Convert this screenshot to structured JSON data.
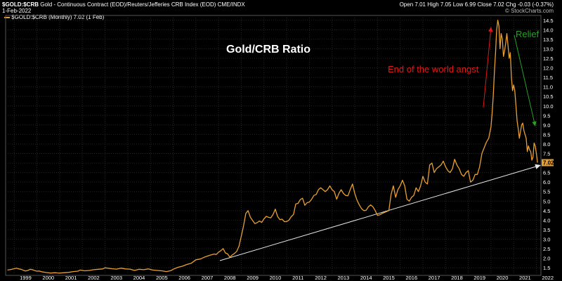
{
  "header": {
    "symbol": "$GOLD:$CRB",
    "description": "Gold - Continuous Contract (EOD)/Reuters/Jefferies CRB Index (EOD)",
    "exchange": "CME/INDX",
    "date": "1-Feb-2022",
    "quote": {
      "open_label": "Open",
      "open": "7.01",
      "high_label": "High",
      "high": "7.05",
      "low_label": "Low",
      "low": "6.99",
      "close_label": "Close",
      "close": "7.02",
      "chg_label": "Chg",
      "chg": "-0.03 (-0.37%)"
    },
    "credit": "© StockCharts.com",
    "legend": "$GOLD:$CRB (Monthly) 7.02 (1 Feb)"
  },
  "colors": {
    "background": "#000000",
    "line": "#e8a033",
    "grid": "#262626",
    "title": "#ffffff",
    "red_note": "#e01818",
    "green_note": "#27a127",
    "trendline": "#e6e6e6"
  },
  "chart_data": {
    "type": "line",
    "title": "Gold/CRB Ratio",
    "xlabel": "",
    "ylabel": "",
    "x_ticks": [
      "1999",
      "2000",
      "2001",
      "2002",
      "2003",
      "2004",
      "2005",
      "2006",
      "2007",
      "2008",
      "2009",
      "2010",
      "2011",
      "2012",
      "2013",
      "2014",
      "2015",
      "2016",
      "2017",
      "2018",
      "2019",
      "2020",
      "2021",
      "2022"
    ],
    "y_ticks": [
      "1.5",
      "2.0",
      "2.5",
      "3.0",
      "3.5",
      "4.0",
      "4.5",
      "5.0",
      "5.5",
      "6.0",
      "6.5",
      "7.0",
      "7.5",
      "8.0",
      "8.5",
      "9.0",
      "9.5",
      "10.0",
      "10.5",
      "11.0",
      "11.5",
      "12.0",
      "12.5",
      "13.0",
      "13.5",
      "14.0",
      "14.5"
    ],
    "ylim": [
      1.1,
      14.75
    ],
    "xlim": [
      1998.62,
      2022.2
    ],
    "grid": true,
    "last_value_label": "7.02",
    "series": [
      {
        "values": [
          [
            1998.7,
            1.38
          ],
          [
            1998.8,
            1.4
          ],
          [
            1998.9,
            1.42
          ],
          [
            1999.0,
            1.45
          ],
          [
            1999.1,
            1.48
          ],
          [
            1999.2,
            1.44
          ],
          [
            1999.3,
            1.42
          ],
          [
            1999.4,
            1.37
          ],
          [
            1999.5,
            1.33
          ],
          [
            1999.6,
            1.36
          ],
          [
            1999.7,
            1.42
          ],
          [
            1999.8,
            1.4
          ],
          [
            1999.9,
            1.35
          ],
          [
            2000.0,
            1.32
          ],
          [
            2000.1,
            1.33
          ],
          [
            2000.2,
            1.29
          ],
          [
            2000.4,
            1.25
          ],
          [
            2000.6,
            1.22
          ],
          [
            2000.8,
            1.24
          ],
          [
            2000.9,
            1.23
          ],
          [
            2001.0,
            1.22
          ],
          [
            2001.2,
            1.24
          ],
          [
            2001.4,
            1.26
          ],
          [
            2001.6,
            1.3
          ],
          [
            2001.8,
            1.32
          ],
          [
            2001.9,
            1.38
          ],
          [
            2002.1,
            1.34
          ],
          [
            2002.3,
            1.36
          ],
          [
            2002.5,
            1.4
          ],
          [
            2002.7,
            1.42
          ],
          [
            2002.9,
            1.44
          ],
          [
            2003.0,
            1.5
          ],
          [
            2003.1,
            1.48
          ],
          [
            2003.3,
            1.45
          ],
          [
            2003.5,
            1.43
          ],
          [
            2003.7,
            1.48
          ],
          [
            2003.9,
            1.44
          ],
          [
            2004.1,
            1.43
          ],
          [
            2004.3,
            1.36
          ],
          [
            2004.5,
            1.42
          ],
          [
            2004.7,
            1.4
          ],
          [
            2004.9,
            1.44
          ],
          [
            2005.1,
            1.38
          ],
          [
            2005.3,
            1.36
          ],
          [
            2005.5,
            1.34
          ],
          [
            2005.7,
            1.3
          ],
          [
            2005.9,
            1.35
          ],
          [
            2006.0,
            1.42
          ],
          [
            2006.2,
            1.52
          ],
          [
            2006.4,
            1.58
          ],
          [
            2006.6,
            1.67
          ],
          [
            2006.8,
            1.74
          ],
          [
            2007.0,
            1.92
          ],
          [
            2007.2,
            1.96
          ],
          [
            2007.4,
            2.07
          ],
          [
            2007.6,
            2.15
          ],
          [
            2007.8,
            2.22
          ],
          [
            2007.9,
            2.2
          ],
          [
            2008.0,
            2.32
          ],
          [
            2008.1,
            2.4
          ],
          [
            2008.2,
            2.51
          ],
          [
            2008.3,
            2.28
          ],
          [
            2008.4,
            2.23
          ],
          [
            2008.5,
            2.05
          ],
          [
            2008.6,
            2.17
          ],
          [
            2008.7,
            2.25
          ],
          [
            2008.8,
            2.36
          ],
          [
            2008.9,
            2.63
          ],
          [
            2009.0,
            3.15
          ],
          [
            2009.1,
            3.7
          ],
          [
            2009.2,
            4.35
          ],
          [
            2009.3,
            4.5
          ],
          [
            2009.4,
            4.15
          ],
          [
            2009.5,
            3.98
          ],
          [
            2009.6,
            3.82
          ],
          [
            2009.7,
            3.87
          ],
          [
            2009.8,
            3.95
          ],
          [
            2009.9,
            3.88
          ],
          [
            2010.0,
            4.07
          ],
          [
            2010.1,
            4.2
          ],
          [
            2010.2,
            4.15
          ],
          [
            2010.3,
            4.12
          ],
          [
            2010.4,
            4.3
          ],
          [
            2010.5,
            4.58
          ],
          [
            2010.6,
            4.2
          ],
          [
            2010.7,
            4.03
          ],
          [
            2010.8,
            4.05
          ],
          [
            2010.9,
            3.92
          ],
          [
            2011.0,
            3.93
          ],
          [
            2011.1,
            4.0
          ],
          [
            2011.2,
            4.18
          ],
          [
            2011.3,
            4.3
          ],
          [
            2011.4,
            4.85
          ],
          [
            2011.5,
            4.88
          ],
          [
            2011.6,
            5.08
          ],
          [
            2011.7,
            5.15
          ],
          [
            2011.8,
            4.78
          ],
          [
            2011.9,
            4.92
          ],
          [
            2012.0,
            4.95
          ],
          [
            2012.1,
            5.1
          ],
          [
            2012.2,
            5.3
          ],
          [
            2012.3,
            5.35
          ],
          [
            2012.4,
            5.6
          ],
          [
            2012.5,
            5.7
          ],
          [
            2012.6,
            5.6
          ],
          [
            2012.7,
            5.5
          ],
          [
            2012.8,
            5.6
          ],
          [
            2012.9,
            5.8
          ],
          [
            2013.0,
            5.6
          ],
          [
            2013.1,
            5.5
          ],
          [
            2013.2,
            5.1
          ],
          [
            2013.3,
            5.4
          ],
          [
            2013.4,
            5.6
          ],
          [
            2013.5,
            5.4
          ],
          [
            2013.6,
            5.3
          ],
          [
            2013.7,
            5.28
          ],
          [
            2013.8,
            5.6
          ],
          [
            2013.9,
            5.9
          ],
          [
            2014.0,
            5.4
          ],
          [
            2014.1,
            5.05
          ],
          [
            2014.2,
            4.8
          ],
          [
            2014.3,
            4.6
          ],
          [
            2014.4,
            4.5
          ],
          [
            2014.5,
            4.52
          ],
          [
            2014.6,
            4.7
          ],
          [
            2014.7,
            4.8
          ],
          [
            2014.8,
            4.7
          ],
          [
            2014.9,
            4.5
          ],
          [
            2015.0,
            4.25
          ],
          [
            2015.1,
            4.28
          ],
          [
            2015.2,
            4.35
          ],
          [
            2015.3,
            4.4
          ],
          [
            2015.4,
            4.45
          ],
          [
            2015.5,
            4.5
          ],
          [
            2015.6,
            5.35
          ],
          [
            2015.7,
            5.8
          ],
          [
            2015.8,
            5.2
          ],
          [
            2015.9,
            5.6
          ],
          [
            2016.0,
            5.8
          ],
          [
            2016.1,
            6.1
          ],
          [
            2016.2,
            5.8
          ],
          [
            2016.3,
            5.1
          ],
          [
            2016.4,
            5.0
          ],
          [
            2016.5,
            5.2
          ],
          [
            2016.6,
            5.3
          ],
          [
            2016.7,
            5.7
          ],
          [
            2016.8,
            5.5
          ],
          [
            2016.9,
            5.8
          ],
          [
            2017.0,
            6.3
          ],
          [
            2017.1,
            6.0
          ],
          [
            2017.2,
            5.9
          ],
          [
            2017.3,
            6.9
          ],
          [
            2017.4,
            7.0
          ],
          [
            2017.5,
            6.5
          ],
          [
            2017.6,
            6.7
          ],
          [
            2017.7,
            6.8
          ],
          [
            2017.8,
            6.9
          ],
          [
            2017.9,
            7.1
          ],
          [
            2018.0,
            6.8
          ],
          [
            2018.1,
            6.6
          ],
          [
            2018.2,
            6.5
          ],
          [
            2018.3,
            6.7
          ],
          [
            2018.4,
            7.2
          ],
          [
            2018.5,
            6.9
          ],
          [
            2018.6,
            6.7
          ],
          [
            2018.7,
            6.4
          ],
          [
            2018.8,
            6.3
          ],
          [
            2018.9,
            6.5
          ],
          [
            2019.0,
            6.6
          ],
          [
            2019.1,
            6.0
          ],
          [
            2019.2,
            6.1
          ],
          [
            2019.3,
            6.4
          ],
          [
            2019.4,
            6.4
          ],
          [
            2019.5,
            6.8
          ],
          [
            2019.6,
            7.5
          ],
          [
            2019.7,
            7.8
          ],
          [
            2019.8,
            8.1
          ],
          [
            2019.9,
            8.3
          ],
          [
            2020.0,
            8.9
          ],
          [
            2020.05,
            9.6
          ],
          [
            2020.1,
            10.5
          ],
          [
            2020.15,
            11.8
          ],
          [
            2020.2,
            12.8
          ],
          [
            2020.25,
            14.0
          ],
          [
            2020.3,
            14.5
          ],
          [
            2020.35,
            14.2
          ],
          [
            2020.4,
            13.0
          ],
          [
            2020.45,
            13.8
          ],
          [
            2020.5,
            13.5
          ],
          [
            2020.55,
            12.6
          ],
          [
            2020.6,
            12.9
          ],
          [
            2020.65,
            13.3
          ],
          [
            2020.7,
            13.8
          ],
          [
            2020.75,
            13.2
          ],
          [
            2020.8,
            12.5
          ],
          [
            2020.85,
            12.8
          ],
          [
            2020.9,
            11.5
          ],
          [
            2020.95,
            10.8
          ],
          [
            2021.0,
            11.1
          ],
          [
            2021.05,
            10.8
          ],
          [
            2021.1,
            10.0
          ],
          [
            2021.15,
            9.2
          ],
          [
            2021.2,
            8.8
          ],
          [
            2021.25,
            8.3
          ],
          [
            2021.3,
            8.65
          ],
          [
            2021.35,
            9.0
          ],
          [
            2021.4,
            9.1
          ],
          [
            2021.45,
            8.7
          ],
          [
            2021.5,
            8.5
          ],
          [
            2021.55,
            8.3
          ],
          [
            2021.6,
            7.6
          ],
          [
            2021.65,
            7.9
          ],
          [
            2021.7,
            7.7
          ],
          [
            2021.75,
            7.6
          ],
          [
            2021.8,
            7.15
          ],
          [
            2021.85,
            7.3
          ],
          [
            2021.9,
            8.05
          ],
          [
            2021.95,
            7.9
          ],
          [
            2022.0,
            7.5
          ],
          [
            2022.05,
            7.02
          ]
        ]
      }
    ],
    "annotations": [
      {
        "text": "End of the world angst",
        "color": "red"
      },
      {
        "text": "Relief",
        "color": "green"
      }
    ]
  }
}
